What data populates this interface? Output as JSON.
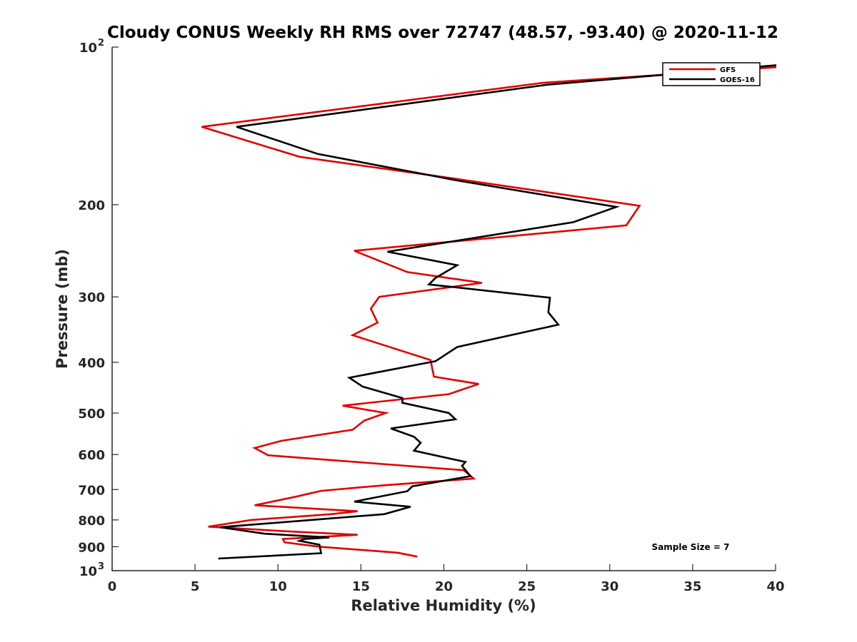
{
  "chart_data": {
    "type": "line",
    "title": "Cloudy CONUS Weekly RH RMS over 72747 (48.57, -93.40) @ 2020-11-12",
    "xlabel": "Relative Humidity (%)",
    "ylabel": "Pressure (mb)",
    "xlim": [
      0,
      40
    ],
    "ylim": [
      100,
      1000
    ],
    "y_scale": "log",
    "y_reversed": true,
    "grid": false,
    "legend_position": "top-right",
    "x_ticks": [
      {
        "value": 0,
        "label": "0"
      },
      {
        "value": 5,
        "label": "5"
      },
      {
        "value": 10,
        "label": "10"
      },
      {
        "value": 15,
        "label": "15"
      },
      {
        "value": 20,
        "label": "20"
      },
      {
        "value": 25,
        "label": "25"
      },
      {
        "value": 30,
        "label": "30"
      },
      {
        "value": 35,
        "label": "35"
      },
      {
        "value": 40,
        "label": "40"
      }
    ],
    "y_ticks": [
      {
        "value": 100,
        "base": "10",
        "exp": "2"
      },
      {
        "value": 200,
        "label": "200"
      },
      {
        "value": 300,
        "label": "300"
      },
      {
        "value": 400,
        "label": "400"
      },
      {
        "value": 500,
        "label": "500"
      },
      {
        "value": 600,
        "label": "600"
      },
      {
        "value": 700,
        "label": "700"
      },
      {
        "value": 800,
        "label": "800"
      },
      {
        "value": 900,
        "label": "900"
      },
      {
        "value": 1000,
        "base": "10",
        "exp": "3"
      }
    ],
    "series": [
      {
        "name": "GFS",
        "color": "#e00000",
        "points": [
          [
            40.5,
            109
          ],
          [
            26.0,
            117
          ],
          [
            5.4,
            142
          ],
          [
            11.3,
            162
          ],
          [
            21.0,
            179
          ],
          [
            31.8,
            201
          ],
          [
            31.0,
            219
          ],
          [
            14.6,
            245
          ],
          [
            17.8,
            269
          ],
          [
            22.3,
            282
          ],
          [
            16.1,
            300
          ],
          [
            15.6,
            316
          ],
          [
            16.0,
            336
          ],
          [
            14.5,
            355
          ],
          [
            19.2,
            396
          ],
          [
            19.4,
            426
          ],
          [
            22.1,
            440
          ],
          [
            20.3,
            460
          ],
          [
            13.9,
            484
          ],
          [
            16.5,
            500
          ],
          [
            15.2,
            517
          ],
          [
            14.5,
            538
          ],
          [
            10.2,
            565
          ],
          [
            8.6,
            583
          ],
          [
            9.4,
            602
          ],
          [
            21.2,
            643
          ],
          [
            21.8,
            667
          ],
          [
            16.4,
            687
          ],
          [
            12.6,
            704
          ],
          [
            11.1,
            722
          ],
          [
            8.6,
            750
          ],
          [
            14.8,
            770
          ],
          [
            13.2,
            780
          ],
          [
            8.4,
            800
          ],
          [
            5.8,
            824
          ],
          [
            10.2,
            840
          ],
          [
            14.8,
            854
          ],
          [
            10.3,
            870
          ],
          [
            10.4,
            883
          ],
          [
            12.5,
            900
          ],
          [
            17.2,
            924
          ],
          [
            18.4,
            940
          ]
        ]
      },
      {
        "name": "GOES-16",
        "color": "#000000",
        "points": [
          [
            40.5,
            108
          ],
          [
            26.2,
            118
          ],
          [
            7.5,
            142
          ],
          [
            12.4,
            160
          ],
          [
            20.9,
            180
          ],
          [
            30.4,
            202
          ],
          [
            27.8,
            216
          ],
          [
            16.6,
            246
          ],
          [
            20.8,
            261
          ],
          [
            19.5,
            276
          ],
          [
            19.1,
            284
          ],
          [
            26.4,
            301
          ],
          [
            26.3,
            321
          ],
          [
            26.9,
            339
          ],
          [
            20.8,
            374
          ],
          [
            19.5,
            398
          ],
          [
            14.3,
            428
          ],
          [
            15.1,
            445
          ],
          [
            17.5,
            468
          ],
          [
            17.5,
            478
          ],
          [
            20.3,
            500
          ],
          [
            20.7,
            514
          ],
          [
            16.8,
            535
          ],
          [
            18.2,
            555
          ],
          [
            18.6,
            570
          ],
          [
            18.2,
            590
          ],
          [
            21.3,
            620
          ],
          [
            21.1,
            631
          ],
          [
            21.6,
            660
          ],
          [
            18.1,
            690
          ],
          [
            17.8,
            705
          ],
          [
            14.6,
            738
          ],
          [
            18.0,
            755
          ],
          [
            16.4,
            780
          ],
          [
            6.5,
            826
          ],
          [
            9.2,
            850
          ],
          [
            13.1,
            864
          ],
          [
            11.6,
            870
          ],
          [
            11.3,
            877
          ],
          [
            12.5,
            892
          ],
          [
            12.6,
            926
          ],
          [
            6.4,
            948
          ]
        ]
      }
    ],
    "legend": [
      "GFS",
      "GOES-16"
    ],
    "annotations": [
      {
        "text": "Sample Size = 7",
        "x": 37.0,
        "y": 900
      }
    ]
  }
}
